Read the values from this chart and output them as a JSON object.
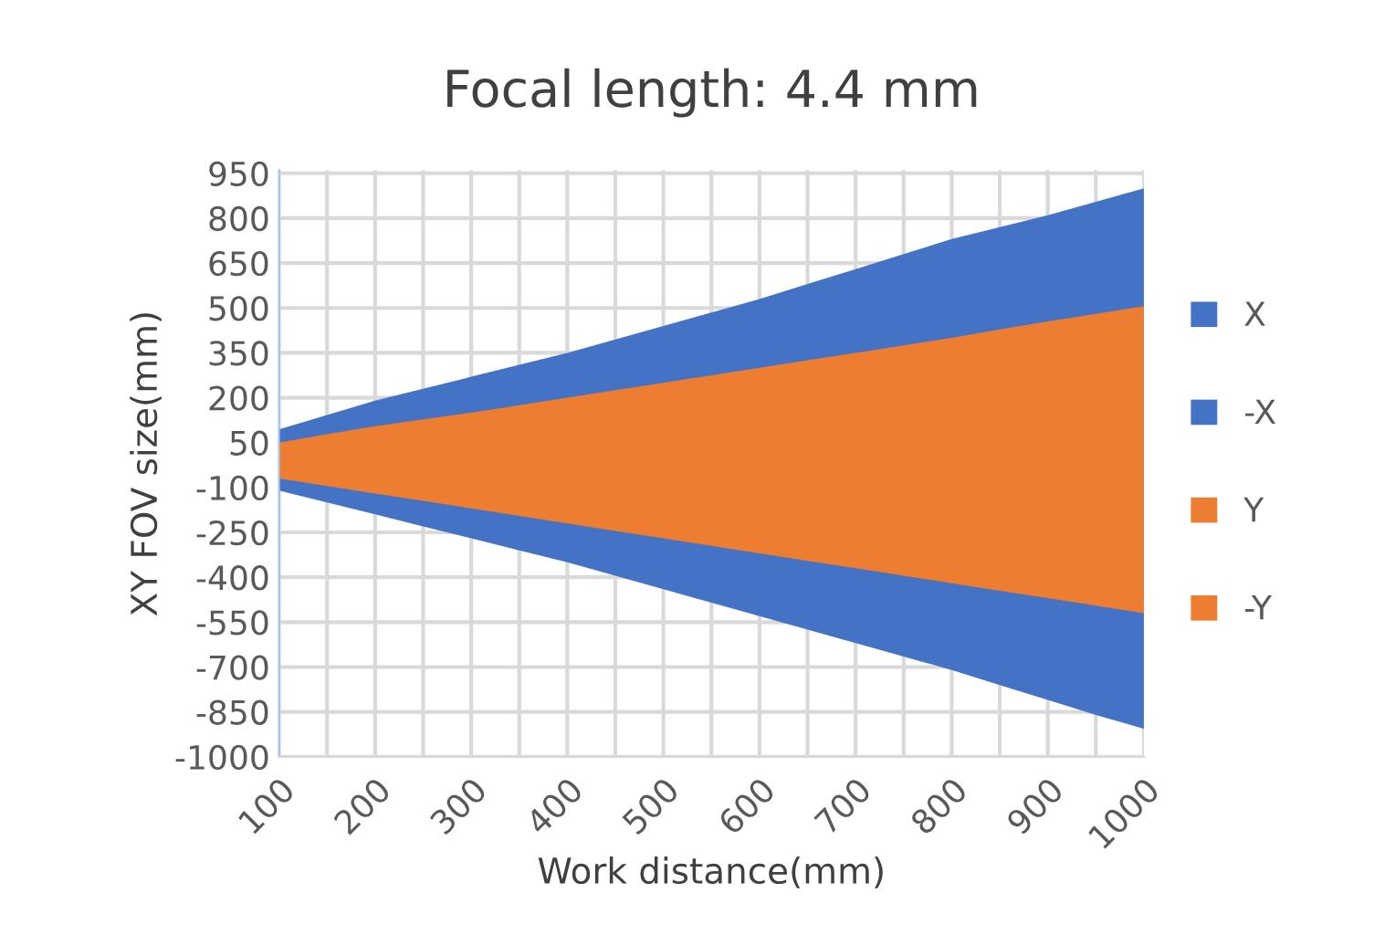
{
  "chart_data": {
    "type": "area",
    "title": "Focal length: 4.4 mm",
    "xlabel": "Work distance(mm)",
    "ylabel": "XY FOV size(mm)",
    "categories": [
      "100",
      null,
      "200",
      null,
      "300",
      null,
      "400",
      null,
      "500",
      null,
      "600",
      null,
      "700",
      null,
      "800",
      null,
      "900",
      null,
      "1000"
    ],
    "series": [
      {
        "name": "X",
        "color": "#4472c4",
        "values": [
          94,
          142,
          190,
          230,
          270,
          310,
          350,
          395,
          440,
          485,
          530,
          580,
          630,
          680,
          730,
          770,
          810,
          855,
          900
        ]
      },
      {
        "name": "-X",
        "color": "#4472c4",
        "values": [
          -110,
          -150,
          -190,
          -230,
          -270,
          -310,
          -350,
          -395,
          -440,
          -485,
          -530,
          -575,
          -620,
          -665,
          -710,
          -760,
          -810,
          -860,
          -906
        ]
      },
      {
        "name": "Y",
        "color": "#ed7d31",
        "values": [
          50,
          78,
          105,
          128,
          150,
          175,
          200,
          225,
          250,
          275,
          300,
          325,
          350,
          375,
          400,
          428,
          455,
          480,
          506
        ]
      },
      {
        "name": "-Y",
        "color": "#ed7d31",
        "values": [
          -70,
          -95,
          -120,
          -145,
          -170,
          -195,
          -220,
          -245,
          -270,
          -295,
          -320,
          -345,
          -370,
          -395,
          -420,
          -445,
          -470,
          -495,
          -520
        ]
      }
    ],
    "ylim": [
      -1000,
      960
    ],
    "yticks": [
      950,
      800,
      650,
      500,
      350,
      200,
      50,
      -100,
      -250,
      -400,
      -550,
      -700,
      -850,
      -1000
    ],
    "grid": true,
    "legend": "right"
  }
}
